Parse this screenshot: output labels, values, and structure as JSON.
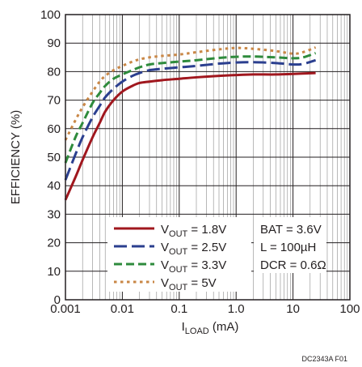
{
  "chart_data": {
    "type": "line",
    "xlabel": {
      "main": "I",
      "sub": "LOAD",
      "unit": " (mA)"
    },
    "ylabel": "EFFICIENCY (%)",
    "xscale": "log",
    "xlim": [
      0.001,
      100
    ],
    "ylim": [
      0,
      100
    ],
    "xticks": [
      {
        "value": 0.001,
        "label": "0.001"
      },
      {
        "value": 0.01,
        "label": "0.01"
      },
      {
        "value": 0.1,
        "label": "0.1"
      },
      {
        "value": 1,
        "label": "1.0"
      },
      {
        "value": 10,
        "label": "10"
      },
      {
        "value": 100,
        "label": "100"
      }
    ],
    "yticks": [
      0,
      10,
      20,
      30,
      40,
      50,
      60,
      70,
      80,
      90,
      100
    ],
    "grid": true,
    "legend_placement": "bottom-center",
    "series": [
      {
        "name": "V_OUT = 1.8V",
        "label_main": "V",
        "label_sub": "OUT",
        "label_rest": " = 1.8V",
        "color": "#a0171e",
        "dash": "solid",
        "x": [
          0.001,
          0.0015,
          0.002,
          0.003,
          0.004,
          0.005,
          0.007,
          0.01,
          0.015,
          0.02,
          0.03,
          0.05,
          0.1,
          0.2,
          0.5,
          1,
          2,
          5,
          10,
          25
        ],
        "y": [
          35,
          43,
          49,
          57,
          62,
          66,
          70,
          73,
          75,
          76,
          76.5,
          77,
          77.5,
          78,
          78.5,
          78.8,
          79,
          79,
          79.2,
          79.5
        ]
      },
      {
        "name": "V_OUT = 2.5V",
        "label_main": "V",
        "label_sub": "OUT",
        "label_rest": " = 2.5V",
        "color": "#2b3f8f",
        "dash": "long-dash",
        "x": [
          0.001,
          0.0015,
          0.002,
          0.003,
          0.004,
          0.005,
          0.007,
          0.01,
          0.015,
          0.02,
          0.03,
          0.05,
          0.1,
          0.2,
          0.5,
          1,
          2,
          5,
          10,
          15,
          25
        ],
        "y": [
          42,
          51,
          57,
          64,
          68,
          71,
          74,
          76.5,
          78.5,
          79.5,
          80.5,
          81,
          81.5,
          82,
          82.8,
          83.2,
          83.3,
          83,
          82.5,
          82.7,
          84
        ]
      },
      {
        "name": "V_OUT = 3.3V",
        "label_main": "V",
        "label_sub": "OUT",
        "label_rest": " = 3.3V",
        "color": "#2e8b3c",
        "dash": "dash",
        "x": [
          0.001,
          0.0015,
          0.002,
          0.003,
          0.004,
          0.005,
          0.007,
          0.01,
          0.015,
          0.02,
          0.03,
          0.05,
          0.1,
          0.2,
          0.5,
          1,
          2,
          5,
          10,
          15,
          25
        ],
        "y": [
          48,
          57,
          62,
          69,
          72.5,
          75,
          77.5,
          79,
          80.5,
          81.5,
          82.5,
          83,
          83.5,
          84,
          84.8,
          85.2,
          85.3,
          85,
          84.7,
          85,
          86.5
        ]
      },
      {
        "name": "V_OUT = 5V",
        "label_main": "V",
        "label_sub": "OUT",
        "label_rest": " = 5V",
        "color": "#c98746",
        "dash": "dot",
        "x": [
          0.001,
          0.0015,
          0.002,
          0.003,
          0.004,
          0.005,
          0.007,
          0.01,
          0.015,
          0.02,
          0.03,
          0.05,
          0.1,
          0.2,
          0.5,
          1,
          2,
          5,
          10,
          15,
          25
        ],
        "y": [
          56,
          63,
          67.5,
          73,
          76.5,
          78.5,
          80.5,
          82,
          83.5,
          84.3,
          85,
          85.5,
          86,
          86.8,
          87.8,
          88.3,
          88,
          87.2,
          86.3,
          86.8,
          88.5
        ]
      }
    ],
    "conditions": [
      "BAT = 3.6V",
      "L = 100µH",
      "DCR = 0.6Ω"
    ]
  },
  "figure_id": "DC2343A F01"
}
